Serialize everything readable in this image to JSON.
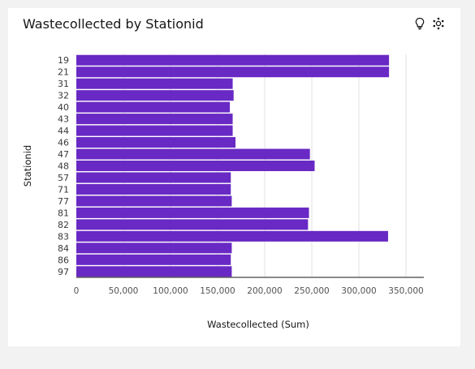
{
  "header": {
    "title": "Wastecollected by Stationid",
    "insights_icon": "lightbulb-icon",
    "settings_icon": "gear-icon"
  },
  "chart_data": {
    "type": "bar",
    "orientation": "horizontal",
    "title": "Wastecollected by Stationid",
    "xlabel": "Wastecollected (Sum)",
    "ylabel": "Stationid",
    "xlim": [
      0,
      350000
    ],
    "xticks": [
      "0",
      "50,000",
      "100,000",
      "150,000",
      "200,000",
      "250,000",
      "300,000",
      "350,000"
    ],
    "grid": "vertical",
    "bar_color": "#6929c4",
    "categories": [
      "19",
      "21",
      "31",
      "32",
      "40",
      "43",
      "44",
      "46",
      "47",
      "48",
      "57",
      "71",
      "77",
      "81",
      "82",
      "83",
      "84",
      "86",
      "97"
    ],
    "values": [
      332000,
      332000,
      166000,
      167000,
      163000,
      166000,
      166000,
      169000,
      248000,
      253000,
      164000,
      164000,
      165000,
      247000,
      246000,
      331000,
      165000,
      164000,
      165000
    ]
  }
}
